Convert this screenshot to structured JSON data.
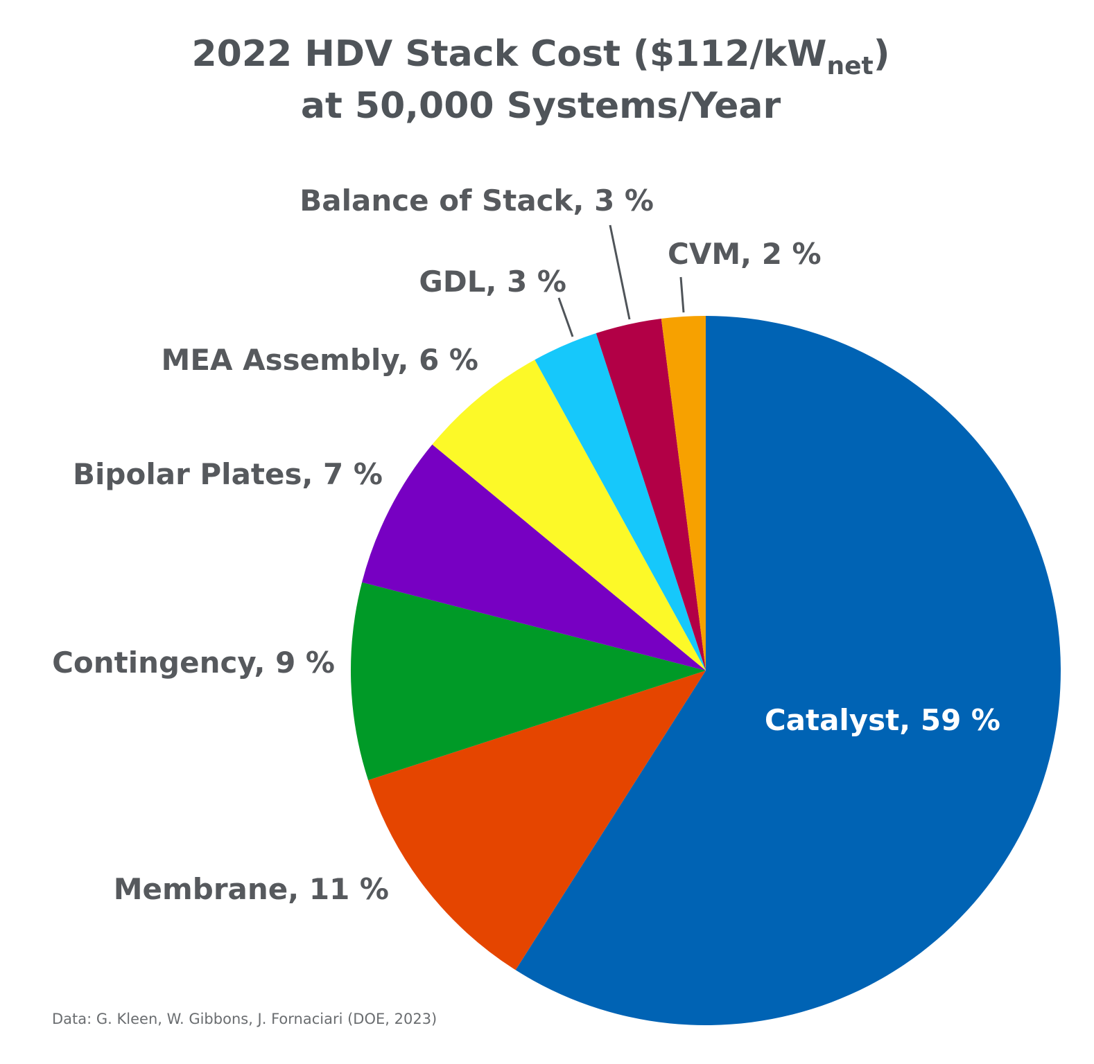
{
  "chart_data": {
    "type": "pie",
    "title_main": "2022 HDV Stack Cost ($112/kW",
    "title_sub": "net",
    "title_close": ")",
    "subtitle": "at 50,000 Systems/Year",
    "start": "12 o'clock, clockwise",
    "slices": [
      {
        "name": "Catalyst",
        "value": 59,
        "label": "Catalyst, 59 %",
        "color": "#0063B4"
      },
      {
        "name": "Membrane",
        "value": 11,
        "label": "Membrane, 11 %",
        "color": "#E54500"
      },
      {
        "name": "Contingency",
        "value": 9,
        "label": "Contingency, 9 %",
        "color": "#009A27"
      },
      {
        "name": "Bipolar Plates",
        "value": 7,
        "label": "Bipolar Plates, 7 %",
        "color": "#7700C2"
      },
      {
        "name": "MEA Assembly",
        "value": 6,
        "label": "MEA Assembly, 6 %",
        "color": "#FCF928"
      },
      {
        "name": "GDL",
        "value": 3,
        "label": "GDL, 3 %",
        "color": "#16C8FB"
      },
      {
        "name": "Balance of Stack",
        "value": 3,
        "label": "Balance of Stack, 3 %",
        "color": "#B20046"
      },
      {
        "name": "CVM",
        "value": 2,
        "label": "CVM, 2 %",
        "color": "#F7A100"
      }
    ],
    "source": "Data: G. Kleen, W. Gibbons, J. Fornaciari (DOE, 2023)"
  }
}
